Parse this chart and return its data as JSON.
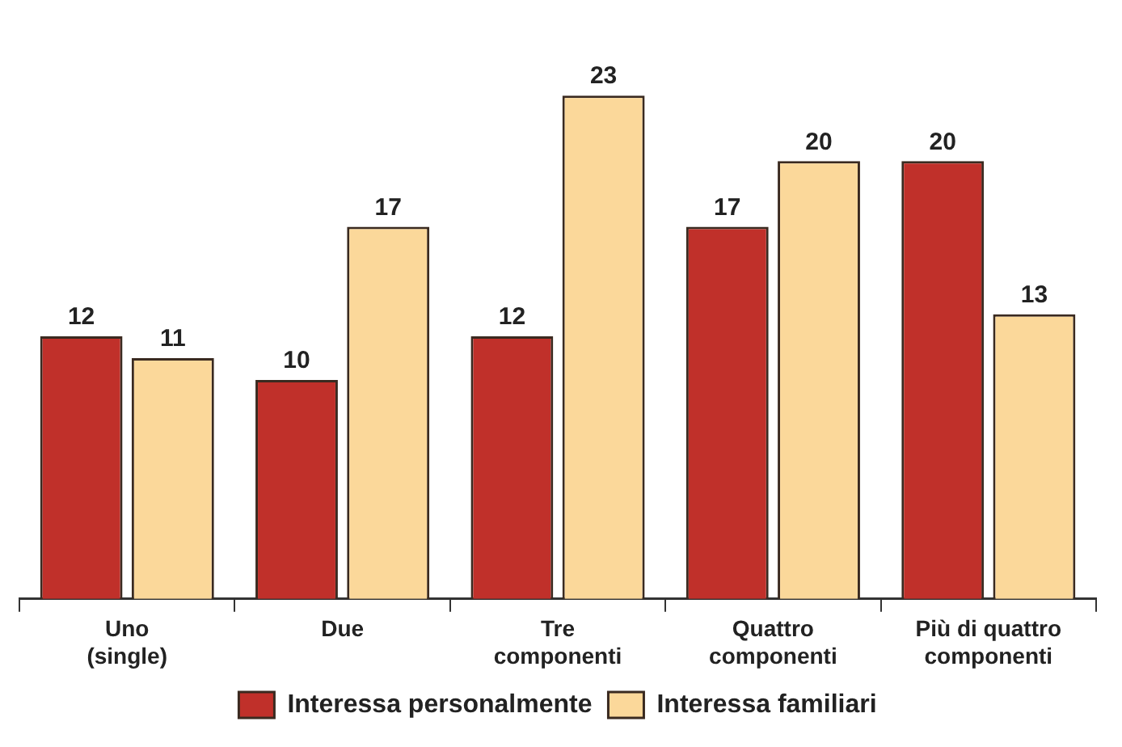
{
  "chart_data": {
    "type": "bar",
    "categories": [
      "Uno\n(single)",
      "Due",
      "Tre\ncomponenti",
      "Quattro\ncomponenti",
      "Più di quattro\ncomponenti"
    ],
    "series": [
      {
        "name": "Interessa personalmente",
        "color": "#c0302a",
        "values": [
          12,
          10,
          12,
          17,
          20
        ]
      },
      {
        "name": "Interessa familiari",
        "color": "#fbd89a",
        "values": [
          11,
          17,
          23,
          20,
          13
        ]
      }
    ],
    "data_labels": true,
    "legend": "bottom",
    "grid": false
  }
}
